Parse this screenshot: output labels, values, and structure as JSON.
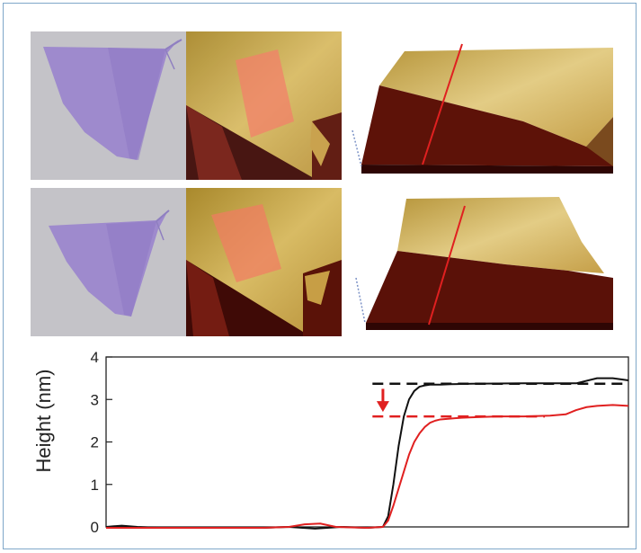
{
  "figure": {
    "colors": {
      "flake_purple": "#9b86cc",
      "substrate_gray": "#c2c1c6",
      "afm_gold": "#c9a24a",
      "afm_dark": "#4a0c06",
      "selection_red": "#f26c5c",
      "line_black": "#111111",
      "line_red": "#e02020"
    },
    "panel_icons": {
      "optical": "flake-micrograph-icon",
      "afm_2d": "afm-topography-map-icon",
      "afm_3d": "afm-3d-surface-icon"
    }
  },
  "chart_data": {
    "type": "line",
    "ylabel": "Height (nm)",
    "xlabel": "",
    "ylim": [
      0,
      4
    ],
    "xlim": [
      0,
      100
    ],
    "yticks": [
      0,
      1,
      2,
      3,
      4
    ],
    "grid": false,
    "series": [
      {
        "color": "#111111",
        "x": [
          0,
          3,
          6,
          10,
          30,
          35,
          40,
          45,
          50,
          53,
          54,
          55,
          56,
          57,
          58,
          59,
          60,
          61,
          62,
          63,
          64,
          66,
          70,
          80,
          90,
          94,
          97,
          100
        ],
        "y": [
          0.0,
          0.03,
          0.0,
          -0.02,
          -0.02,
          0.0,
          -0.04,
          0.0,
          -0.02,
          0.0,
          0.25,
          1.0,
          1.9,
          2.6,
          3.0,
          3.2,
          3.3,
          3.33,
          3.35,
          3.35,
          3.35,
          3.36,
          3.37,
          3.38,
          3.38,
          3.5,
          3.5,
          3.45
        ]
      },
      {
        "color": "#e02020",
        "x": [
          0,
          10,
          30,
          35,
          38,
          41,
          44,
          50,
          53,
          54,
          55,
          56,
          57,
          58,
          59,
          60,
          61,
          62,
          63,
          64,
          66,
          68,
          70,
          75,
          80,
          85,
          88,
          90,
          92,
          94,
          97,
          100
        ],
        "y": [
          -0.02,
          -0.02,
          -0.02,
          0.0,
          0.06,
          0.08,
          0.0,
          -0.02,
          0.0,
          0.15,
          0.5,
          0.9,
          1.3,
          1.7,
          2.0,
          2.2,
          2.35,
          2.45,
          2.5,
          2.53,
          2.55,
          2.57,
          2.58,
          2.6,
          2.6,
          2.62,
          2.65,
          2.75,
          2.82,
          2.85,
          2.87,
          2.85
        ]
      }
    ],
    "annotations": [
      {
        "type": "dashed-line",
        "color": "#111111",
        "y": 3.37,
        "x_from": 51,
        "x_to": 100
      },
      {
        "type": "dashed-line",
        "color": "#e02020",
        "y": 2.6,
        "x_from": 51,
        "x_to": 84
      },
      {
        "type": "arrow-down",
        "color": "#e02020",
        "x": 53,
        "y_from": 3.25,
        "y_to": 2.75
      }
    ]
  }
}
